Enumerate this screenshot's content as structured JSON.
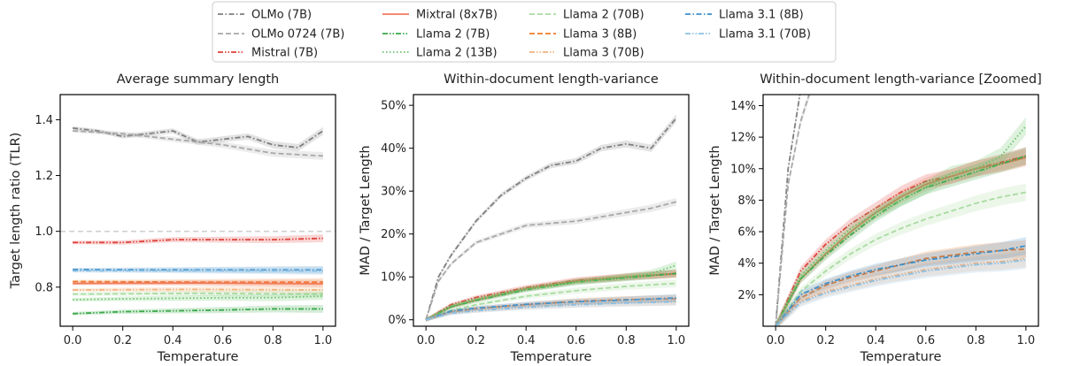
{
  "legend": [
    {
      "name": "OLMo (7B)",
      "color": "#7f7f7f",
      "dash": "dashdot"
    },
    {
      "name": "OLMo 0724 (7B)",
      "color": "#a8a8a8",
      "dash": "dashed"
    },
    {
      "name": "Mistral (7B)",
      "color": "#e0413a",
      "dash": "dashdotdot"
    },
    {
      "name": "Mixtral (8x7B)",
      "color": "#f07a5c",
      "dash": "solid"
    },
    {
      "name": "Llama 2 (7B)",
      "color": "#3aa84a",
      "dash": "dashdotdot"
    },
    {
      "name": "Llama 2 (13B)",
      "color": "#6ac36a",
      "dash": "dotted"
    },
    {
      "name": "Llama 2 (70B)",
      "color": "#a9dba0",
      "dash": "dashed"
    },
    {
      "name": "Llama 3 (8B)",
      "color": "#f07a28",
      "dash": "dashed"
    },
    {
      "name": "Llama 3 (70B)",
      "color": "#f5b07a",
      "dash": "dashdotdot"
    },
    {
      "name": "Llama 3.1 (8B)",
      "color": "#3d8fc9",
      "dash": "dashdot"
    },
    {
      "name": "Llama 3.1 (70B)",
      "color": "#8cc0e4",
      "dash": "dashdotdot"
    }
  ],
  "chart_data": [
    {
      "type": "line",
      "title": "Average summary length",
      "xlabel": "Temperature",
      "ylabel": "Target length ratio (TLR)",
      "xlim": [
        0,
        1
      ],
      "ylim": [
        0.66,
        1.49
      ],
      "yticks": [
        0.8,
        1.0,
        1.2,
        1.4
      ],
      "ytick_labels": [
        "0.8",
        "1.0",
        "1.2",
        "1.4"
      ],
      "xticks": [
        0,
        0.2,
        0.4,
        0.6,
        0.8,
        1.0
      ],
      "xtick_labels": [
        "0.0",
        "0.2",
        "0.4",
        "0.6",
        "0.8",
        "1.0"
      ],
      "reference_line": 1.0,
      "series": [
        {
          "name": "OLMo (7B)",
          "x": [
            0,
            0.1,
            0.2,
            0.3,
            0.4,
            0.5,
            0.6,
            0.7,
            0.8,
            0.9,
            1.0
          ],
          "y": [
            1.37,
            1.36,
            1.34,
            1.35,
            1.36,
            1.32,
            1.33,
            1.34,
            1.31,
            1.3,
            1.36
          ]
        },
        {
          "name": "OLMo 0724 (7B)",
          "x": [
            0,
            0.2,
            0.4,
            0.6,
            0.8,
            1.0
          ],
          "y": [
            1.36,
            1.35,
            1.33,
            1.31,
            1.28,
            1.27
          ]
        },
        {
          "name": "Mistral (7B)",
          "x": [
            0,
            0.2,
            0.4,
            0.6,
            0.8,
            1.0
          ],
          "y": [
            0.96,
            0.96,
            0.97,
            0.97,
            0.97,
            0.975
          ]
        },
        {
          "name": "Llama 3.1 (8B)",
          "x": [
            0,
            0.5,
            1.0
          ],
          "y": [
            0.863,
            0.862,
            0.862
          ]
        },
        {
          "name": "Llama 3.1 (70B)",
          "x": [
            0,
            0.5,
            1.0
          ],
          "y": [
            0.858,
            0.859,
            0.858
          ]
        },
        {
          "name": "Llama 3 (8B)",
          "x": [
            0,
            0.5,
            1.0
          ],
          "y": [
            0.82,
            0.818,
            0.818
          ]
        },
        {
          "name": "Mixtral (8x7B)",
          "x": [
            0,
            0.5,
            1.0
          ],
          "y": [
            0.813,
            0.815,
            0.812
          ]
        },
        {
          "name": "Llama 3 (70B)",
          "x": [
            0,
            0.5,
            1.0
          ],
          "y": [
            0.79,
            0.792,
            0.79
          ]
        },
        {
          "name": "Llama 2 (70B)",
          "x": [
            0,
            0.5,
            1.0
          ],
          "y": [
            0.775,
            0.778,
            0.775
          ]
        },
        {
          "name": "Llama 2 (13B)",
          "x": [
            0,
            0.2,
            0.4,
            0.6,
            0.8,
            1.0
          ],
          "y": [
            0.755,
            0.758,
            0.76,
            0.762,
            0.762,
            0.768
          ]
        },
        {
          "name": "Llama 2 (7B)",
          "x": [
            0,
            0.2,
            0.4,
            0.6,
            0.8,
            1.0
          ],
          "y": [
            0.705,
            0.712,
            0.715,
            0.718,
            0.722,
            0.722
          ]
        }
      ]
    },
    {
      "type": "line",
      "title": "Within-document length-variance",
      "xlabel": "Temperature",
      "ylabel": "MAD / Target Length",
      "xlim": [
        0,
        1
      ],
      "ylim": [
        -0.015,
        0.525
      ],
      "yticks": [
        0,
        0.1,
        0.2,
        0.3,
        0.4,
        0.5
      ],
      "ytick_labels": [
        "0%",
        "10%",
        "20%",
        "30%",
        "40%",
        "50%"
      ],
      "xticks": [
        0,
        0.2,
        0.4,
        0.6,
        0.8,
        1.0
      ],
      "xtick_labels": [
        "0.0",
        "0.2",
        "0.4",
        "0.6",
        "0.8",
        "1.0"
      ],
      "series": [
        {
          "name": "OLMo (7B)",
          "x": [
            0,
            0.05,
            0.1,
            0.2,
            0.3,
            0.4,
            0.5,
            0.6,
            0.7,
            0.8,
            0.9,
            1.0
          ],
          "y": [
            0,
            0.1,
            0.15,
            0.23,
            0.29,
            0.33,
            0.36,
            0.37,
            0.4,
            0.41,
            0.4,
            0.47
          ]
        },
        {
          "name": "OLMo 0724 (7B)",
          "x": [
            0,
            0.05,
            0.1,
            0.2,
            0.3,
            0.4,
            0.5,
            0.6,
            0.7,
            0.8,
            0.9,
            1.0
          ],
          "y": [
            0,
            0.09,
            0.13,
            0.18,
            0.2,
            0.22,
            0.225,
            0.23,
            0.24,
            0.25,
            0.26,
            0.275
          ]
        },
        {
          "name": "Mistral (7B)",
          "x": [
            0,
            0.1,
            0.2,
            0.4,
            0.6,
            0.8,
            1.0
          ],
          "y": [
            0,
            0.035,
            0.052,
            0.075,
            0.092,
            0.1,
            0.108
          ]
        },
        {
          "name": "Mixtral (8x7B)",
          "x": [
            0,
            0.1,
            0.2,
            0.4,
            0.6,
            0.8,
            1.0
          ],
          "y": [
            0,
            0.03,
            0.046,
            0.072,
            0.09,
            0.1,
            0.107
          ]
        },
        {
          "name": "Llama 2 (7B)",
          "x": [
            0,
            0.1,
            0.2,
            0.4,
            0.6,
            0.8,
            1.0
          ],
          "y": [
            0,
            0.03,
            0.045,
            0.07,
            0.088,
            0.098,
            0.108
          ]
        },
        {
          "name": "Llama 2 (13B)",
          "x": [
            0,
            0.1,
            0.2,
            0.4,
            0.6,
            0.8,
            0.9,
            1.0
          ],
          "y": [
            0,
            0.032,
            0.048,
            0.072,
            0.088,
            0.1,
            0.108,
            0.127
          ]
        },
        {
          "name": "Llama 2 (70B)",
          "x": [
            0,
            0.1,
            0.2,
            0.4,
            0.6,
            0.8,
            1.0
          ],
          "y": [
            0,
            0.022,
            0.035,
            0.055,
            0.068,
            0.078,
            0.085
          ]
        },
        {
          "name": "Llama 3 (8B)",
          "x": [
            0,
            0.1,
            0.2,
            0.4,
            0.6,
            0.8,
            1.0
          ],
          "y": [
            0,
            0.018,
            0.026,
            0.035,
            0.043,
            0.047,
            0.049
          ]
        },
        {
          "name": "Llama 3 (70B)",
          "x": [
            0,
            0.1,
            0.2,
            0.4,
            0.6,
            0.8,
            1.0
          ],
          "y": [
            0,
            0.016,
            0.022,
            0.03,
            0.036,
            0.04,
            0.043
          ]
        },
        {
          "name": "Llama 3.1 (8B)",
          "x": [
            0,
            0.1,
            0.2,
            0.4,
            0.6,
            0.8,
            1.0
          ],
          "y": [
            0,
            0.02,
            0.027,
            0.036,
            0.042,
            0.046,
            0.051
          ]
        },
        {
          "name": "Llama 3.1 (70B)",
          "x": [
            0,
            0.1,
            0.2,
            0.4,
            0.6,
            0.8,
            1.0
          ],
          "y": [
            0,
            0.015,
            0.021,
            0.029,
            0.035,
            0.039,
            0.042
          ]
        }
      ]
    },
    {
      "type": "line",
      "title": "Within-document length-variance [Zoomed]",
      "xlabel": "Temperature",
      "ylabel": "MAD / Target Length",
      "xlim": [
        0,
        1
      ],
      "ylim": [
        0,
        0.147
      ],
      "yticks": [
        0.02,
        0.04,
        0.06,
        0.08,
        0.1,
        0.12,
        0.14
      ],
      "ytick_labels": [
        "2%",
        "4%",
        "6%",
        "8%",
        "10%",
        "12%",
        "14%"
      ],
      "xticks": [
        0,
        0.2,
        0.4,
        0.6,
        0.8,
        1.0
      ],
      "xtick_labels": [
        "0.0",
        "0.2",
        "0.4",
        "0.6",
        "0.8",
        "1.0"
      ],
      "series": [
        {
          "name": "OLMo (7B)",
          "x": [
            0,
            0.05,
            0.1,
            0.2
          ],
          "y": [
            0,
            0.1,
            0.15,
            0.23
          ]
        },
        {
          "name": "OLMo 0724 (7B)",
          "x": [
            0,
            0.05,
            0.1,
            0.2
          ],
          "y": [
            0,
            0.09,
            0.13,
            0.18
          ]
        },
        {
          "name": "Mistral (7B)",
          "x": [
            0,
            0.1,
            0.2,
            0.3,
            0.4,
            0.5,
            0.6,
            0.7,
            0.8,
            0.9,
            1.0
          ],
          "y": [
            0,
            0.035,
            0.052,
            0.065,
            0.075,
            0.085,
            0.092,
            0.095,
            0.1,
            0.104,
            0.108
          ]
        },
        {
          "name": "Mixtral (8x7B)",
          "x": [
            0,
            0.1,
            0.2,
            0.3,
            0.4,
            0.5,
            0.6,
            0.7,
            0.8,
            0.9,
            1.0
          ],
          "y": [
            0,
            0.03,
            0.046,
            0.06,
            0.072,
            0.082,
            0.09,
            0.095,
            0.1,
            0.103,
            0.107
          ]
        },
        {
          "name": "Llama 2 (7B)",
          "x": [
            0,
            0.1,
            0.2,
            0.3,
            0.4,
            0.5,
            0.6,
            0.7,
            0.8,
            0.9,
            1.0
          ],
          "y": [
            0,
            0.03,
            0.045,
            0.058,
            0.07,
            0.08,
            0.088,
            0.093,
            0.098,
            0.103,
            0.108
          ]
        },
        {
          "name": "Llama 2 (13B)",
          "x": [
            0,
            0.1,
            0.2,
            0.3,
            0.4,
            0.5,
            0.6,
            0.7,
            0.8,
            0.9,
            1.0
          ],
          "y": [
            0,
            0.032,
            0.048,
            0.062,
            0.072,
            0.08,
            0.088,
            0.097,
            0.1,
            0.108,
            0.127
          ]
        },
        {
          "name": "Llama 2 (70B)",
          "x": [
            0,
            0.1,
            0.2,
            0.3,
            0.4,
            0.5,
            0.6,
            0.7,
            0.8,
            0.9,
            1.0
          ],
          "y": [
            0,
            0.022,
            0.035,
            0.046,
            0.055,
            0.062,
            0.068,
            0.073,
            0.078,
            0.082,
            0.085
          ]
        },
        {
          "name": "Llama 3 (8B)",
          "x": [
            0,
            0.1,
            0.2,
            0.3,
            0.4,
            0.5,
            0.6,
            0.7,
            0.8,
            0.9,
            1.0
          ],
          "y": [
            0,
            0.018,
            0.026,
            0.031,
            0.035,
            0.039,
            0.043,
            0.045,
            0.047,
            0.048,
            0.049
          ]
        },
        {
          "name": "Llama 3 (70B)",
          "x": [
            0,
            0.1,
            0.2,
            0.3,
            0.4,
            0.5,
            0.6,
            0.7,
            0.8,
            0.9,
            1.0
          ],
          "y": [
            0,
            0.016,
            0.022,
            0.026,
            0.03,
            0.033,
            0.036,
            0.038,
            0.04,
            0.041,
            0.043
          ]
        },
        {
          "name": "Llama 3.1 (8B)",
          "x": [
            0,
            0.1,
            0.2,
            0.3,
            0.4,
            0.5,
            0.6,
            0.7,
            0.8,
            0.9,
            1.0
          ],
          "y": [
            0,
            0.02,
            0.027,
            0.032,
            0.036,
            0.039,
            0.042,
            0.044,
            0.046,
            0.048,
            0.051
          ]
        },
        {
          "name": "Llama 3.1 (70B)",
          "x": [
            0,
            0.1,
            0.2,
            0.3,
            0.4,
            0.5,
            0.6,
            0.7,
            0.8,
            0.9,
            1.0
          ],
          "y": [
            0,
            0.015,
            0.021,
            0.025,
            0.029,
            0.032,
            0.035,
            0.037,
            0.039,
            0.04,
            0.042
          ]
        }
      ]
    }
  ]
}
